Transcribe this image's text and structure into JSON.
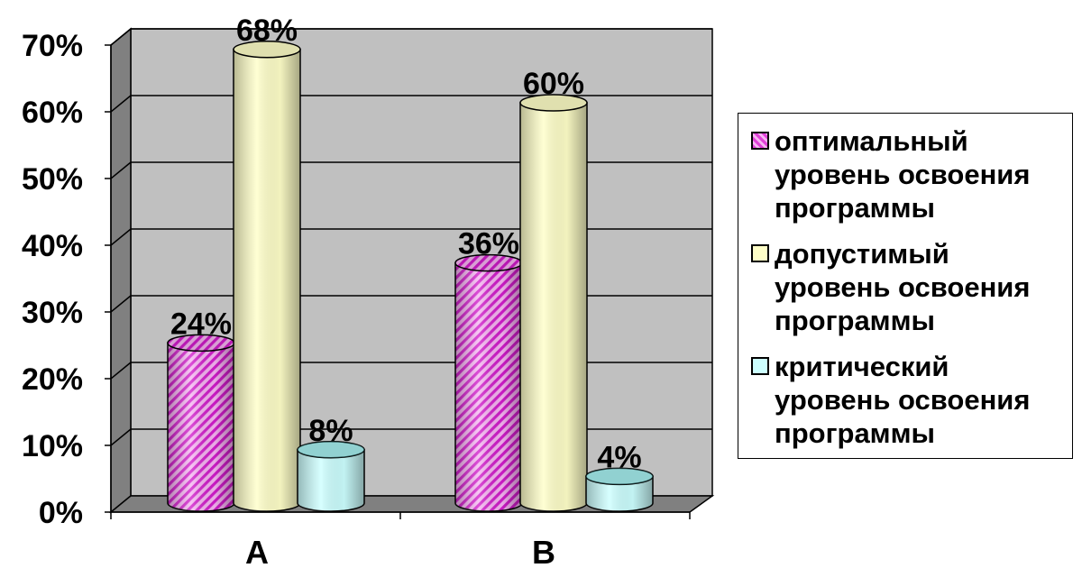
{
  "chart_data": {
    "type": "bar",
    "style": "3d-cylinder",
    "categories": [
      "A",
      "B"
    ],
    "series": [
      {
        "name": "оптимальный уровень освоения программы",
        "values": [
          24,
          36
        ],
        "color": "#e040d8",
        "labels": [
          "24%",
          "36%"
        ]
      },
      {
        "name": "допустимый уровень освоения программы",
        "values": [
          68,
          60
        ],
        "color": "#ffffc8",
        "labels": [
          "68%",
          "60%"
        ]
      },
      {
        "name": "критический уровень освоения программы",
        "values": [
          8,
          4
        ],
        "color": "#ccffff",
        "labels": [
          "8%",
          "4%"
        ]
      }
    ],
    "yticks": [
      "0%",
      "10%",
      "20%",
      "30%",
      "40%",
      "50%",
      "60%",
      "70%"
    ],
    "ylim": [
      0,
      70
    ],
    "grid": true,
    "wall_color": "#c0c0c0",
    "legend_position": "right"
  },
  "legend": {
    "items": [
      {
        "label": "оптимальный уровень освоения программы",
        "color": "#e040d8"
      },
      {
        "label": "допустимый уровень освоения программы",
        "color": "#ffffc8"
      },
      {
        "label": "критический уровень освоения программы",
        "color": "#ccffff"
      }
    ]
  }
}
